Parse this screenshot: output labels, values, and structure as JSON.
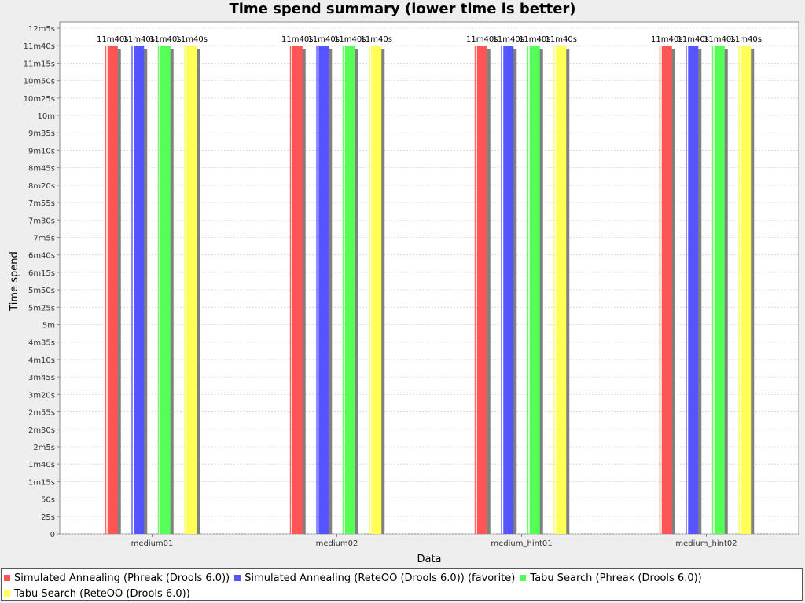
{
  "chart_data": {
    "type": "bar",
    "title": "Time spend summary (lower time is better)",
    "xlabel": "Data",
    "ylabel": "Time spend",
    "ylim": [
      0,
      725
    ],
    "y_ticks": [
      0,
      25,
      50,
      75,
      100,
      125,
      150,
      175,
      200,
      225,
      250,
      275,
      300,
      325,
      350,
      375,
      400,
      425,
      450,
      475,
      500,
      525,
      550,
      575,
      600,
      625,
      650,
      675,
      700,
      725
    ],
    "y_tick_labels": [
      "0",
      "25s",
      "50s",
      "1m15s",
      "1m40s",
      "2m5s",
      "2m30s",
      "2m55s",
      "3m20s",
      "3m45s",
      "4m10s",
      "4m35s",
      "5m",
      "5m25s",
      "5m50s",
      "6m15s",
      "6m40s",
      "7m5s",
      "7m30s",
      "7m55s",
      "8m20s",
      "8m45s",
      "9m10s",
      "9m35s",
      "10m",
      "10m25s",
      "10m50s",
      "11m15s",
      "11m40s",
      "12m5s"
    ],
    "grid": true,
    "legend_position": "bottom",
    "categories": [
      "medium01",
      "medium02",
      "medium_hint01",
      "medium_hint02"
    ],
    "series": [
      {
        "name": "Simulated Annealing (Phreak (Drools 6.0))",
        "color": "#ff5555",
        "values": [
          700,
          700,
          700,
          700
        ],
        "labels": [
          "11m40s",
          "11m40s",
          "11m40s",
          "11m40s"
        ]
      },
      {
        "name": "Simulated Annealing (ReteOO (Drools 6.0)) (favorite)",
        "color": "#5555ff",
        "values": [
          700,
          700,
          700,
          700
        ],
        "labels": [
          "11m40s",
          "11m40s",
          "11m40s",
          "11m40s"
        ]
      },
      {
        "name": "Tabu Search (Phreak (Drools 6.0))",
        "color": "#55ff55",
        "values": [
          700,
          700,
          700,
          700
        ],
        "labels": [
          "11m40s",
          "11m40s",
          "11m40s",
          "11m40s"
        ]
      },
      {
        "name": "Tabu Search (ReteOO (Drools 6.0))",
        "color": "#ffff55",
        "values": [
          700,
          700,
          700,
          700
        ],
        "labels": [
          "11m40s",
          "11m40s",
          "11m40s",
          "11m40s"
        ]
      }
    ]
  }
}
